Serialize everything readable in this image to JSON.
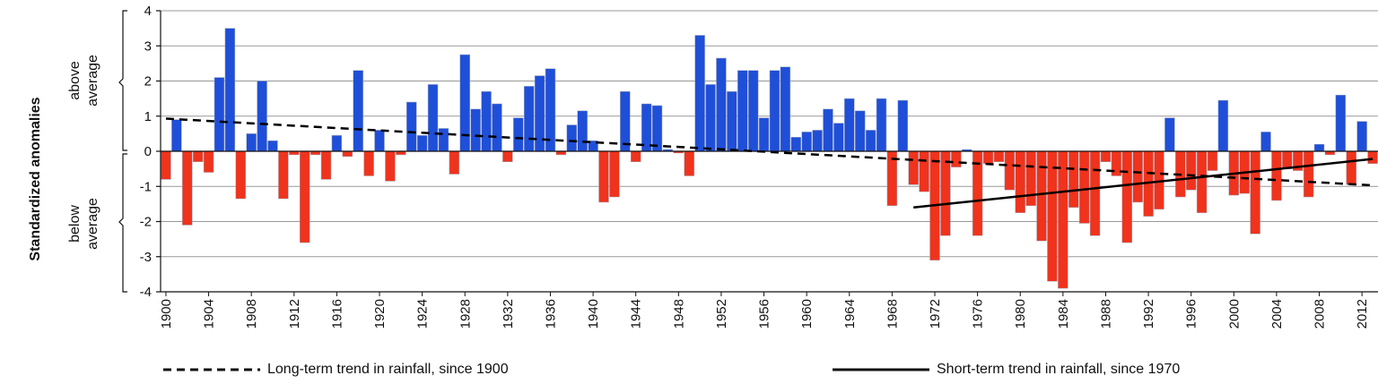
{
  "chart_data": {
    "type": "bar",
    "ylabel": "Standardized anomalies",
    "above_label": [
      "above",
      "average"
    ],
    "below_label": [
      "below",
      "average"
    ],
    "ylim": [
      -4,
      4
    ],
    "yticks": [
      4,
      3,
      2,
      1,
      0,
      -1,
      -2,
      -3,
      -4
    ],
    "grid": true,
    "colors": {
      "positive": "#1f4fd8",
      "negative": "#f0331c",
      "grid": "#999999"
    },
    "xticks": [
      1900,
      1904,
      1908,
      1912,
      1916,
      1920,
      1924,
      1928,
      1932,
      1936,
      1940,
      1944,
      1948,
      1952,
      1956,
      1960,
      1964,
      1968,
      1972,
      1976,
      1980,
      1984,
      1988,
      1992,
      1996,
      2000,
      2004,
      2008,
      2012
    ],
    "start_year": 1900,
    "values": [
      -0.8,
      0.9,
      -2.1,
      -0.3,
      -0.6,
      2.1,
      3.5,
      -1.35,
      0.5,
      2.0,
      0.3,
      -1.35,
      -0.1,
      -2.6,
      -0.1,
      -0.8,
      0.45,
      -0.15,
      2.3,
      -0.7,
      0.6,
      -0.85,
      -0.1,
      1.4,
      0.45,
      1.9,
      0.65,
      -0.65,
      2.75,
      1.2,
      1.7,
      1.35,
      -0.3,
      0.95,
      1.85,
      2.15,
      2.35,
      -0.1,
      0.75,
      1.15,
      0.3,
      -1.45,
      -1.3,
      1.7,
      -0.3,
      1.35,
      1.3,
      0.05,
      -0.05,
      -0.7,
      3.3,
      1.9,
      2.65,
      1.7,
      2.3,
      2.3,
      0.95,
      2.3,
      2.4,
      0.4,
      0.55,
      0.6,
      1.2,
      0.8,
      1.5,
      1.15,
      0.6,
      1.5,
      -1.55,
      1.45,
      -0.95,
      -1.15,
      -3.1,
      -2.4,
      -0.45,
      0.05,
      -2.4,
      -0.35,
      -0.3,
      -1.1,
      -1.75,
      -1.55,
      -2.55,
      -3.7,
      -3.9,
      -1.6,
      -2.05,
      -2.4,
      -0.3,
      -0.7,
      -2.6,
      -1.45,
      -1.85,
      -1.65,
      0.95,
      -1.3,
      -1.1,
      -1.75,
      -0.55,
      1.45,
      -1.25,
      -1.2,
      -2.35,
      0.55,
      -1.4,
      -0.5,
      -0.55,
      -1.3,
      0.2,
      -0.1,
      1.6,
      -0.95,
      0.85,
      -0.35
    ],
    "trends": [
      {
        "name": "Long-term trend in rainfall, since 1900",
        "style": "dashed",
        "x": [
          1900,
          2013
        ],
        "y": [
          0.93,
          -0.97
        ]
      },
      {
        "name": "Short-term trend in rainfall, since 1970",
        "style": "solid",
        "x": [
          1970,
          2013
        ],
        "y": [
          -1.6,
          -0.22
        ]
      }
    ]
  }
}
